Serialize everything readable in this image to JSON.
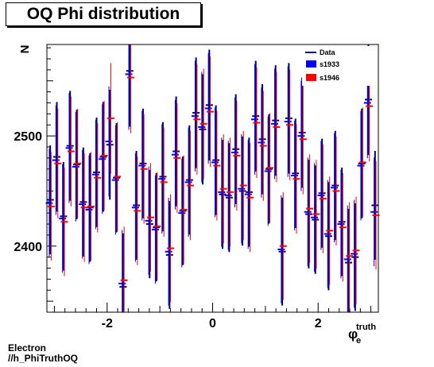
{
  "title": "OQ Phi distribution",
  "footer": {
    "line1": "Electron",
    "line2": "//h_PhiTruthOQ"
  },
  "colors": {
    "data": "#00007f",
    "s1933": "#0000ff",
    "s1946": "#ff0000"
  },
  "chart_data": {
    "type": "errorbar",
    "title": "OQ Phi distribution",
    "ylabel": "N",
    "xlabel": "φ_e^truth",
    "xlabel_main": "φ",
    "xlabel_sub": "e",
    "xlabel_sup": "truth",
    "xlim": [
      -3.1416,
      3.1416
    ],
    "ylim": [
      2340,
      2583
    ],
    "xticks": [
      -2,
      0,
      2
    ],
    "yticks": [
      2400,
      2500
    ],
    "xtick_labels": [
      "-2",
      "0",
      "2"
    ],
    "ytick_labels": [
      "2400",
      "2500"
    ],
    "legend": [
      "Data",
      "s1933",
      "s1946"
    ],
    "legend_position": "top-right",
    "x": [
      -3.0787,
      -2.953,
      -2.8274,
      -2.7018,
      -2.5761,
      -2.4504,
      -2.3248,
      -2.1991,
      -2.0735,
      -1.9478,
      -1.8222,
      -1.6965,
      -1.5708,
      -1.4451,
      -1.3195,
      -1.1938,
      -1.0681,
      -0.9425,
      -0.8168,
      -0.6912,
      -0.5655,
      -0.4398,
      -0.3142,
      -0.1885,
      -0.0628,
      0.0628,
      0.1885,
      0.3142,
      0.4398,
      0.5655,
      0.6912,
      0.8168,
      0.9425,
      1.0681,
      1.1938,
      1.3195,
      1.4451,
      1.5708,
      1.6965,
      1.8222,
      1.9478,
      2.0735,
      2.1991,
      2.3248,
      2.4504,
      2.5761,
      2.7018,
      2.8274,
      2.953,
      3.0787
    ],
    "series": [
      {
        "name": "Data",
        "values": [
          2442,
          2481,
          2427,
          2491,
          2474,
          2440,
          2435,
          2467,
          2481,
          2492,
          2462,
          2363,
          2559,
          2437,
          2475,
          2420,
          2417,
          2463,
          2392,
          2486,
          2432,
          2460,
          2521,
          2506,
          2528,
          2478,
          2447,
          2444,
          2488,
          2450,
          2449,
          2518,
          2497,
          2470,
          2514,
          2395,
          2516,
          2466,
          2503,
          2429,
          2424,
          2448,
          2409,
          2455,
          2422,
          2385,
          2390,
          2475,
          2533,
          2437
        ]
      },
      {
        "name": "s1933",
        "values": [
          2439,
          2478,
          2425,
          2489,
          2472,
          2438,
          2433,
          2465,
          2479,
          2495,
          2460,
          2366,
          2556,
          2435,
          2473,
          2423,
          2415,
          2461,
          2395,
          2483,
          2430,
          2458,
          2518,
          2508,
          2525,
          2476,
          2449,
          2446,
          2485,
          2452,
          2447,
          2515,
          2494,
          2468,
          2511,
          2397,
          2513,
          2464,
          2500,
          2431,
          2426,
          2446,
          2411,
          2453,
          2420,
          2388,
          2393,
          2473,
          2530,
          2431
        ]
      },
      {
        "name": "s1946",
        "values": [
          2436,
          2475,
          2422,
          2486,
          2475,
          2435,
          2436,
          2462,
          2482,
          2516,
          2463,
          2369,
          2553,
          2432,
          2470,
          2426,
          2418,
          2458,
          2398,
          2480,
          2433,
          2455,
          2515,
          2511,
          2522,
          2473,
          2452,
          2449,
          2482,
          2455,
          2444,
          2512,
          2491,
          2471,
          2508,
          2400,
          2510,
          2461,
          2497,
          2434,
          2429,
          2443,
          2414,
          2450,
          2417,
          2391,
          2396,
          2476,
          2527,
          2428
        ]
      }
    ]
  }
}
